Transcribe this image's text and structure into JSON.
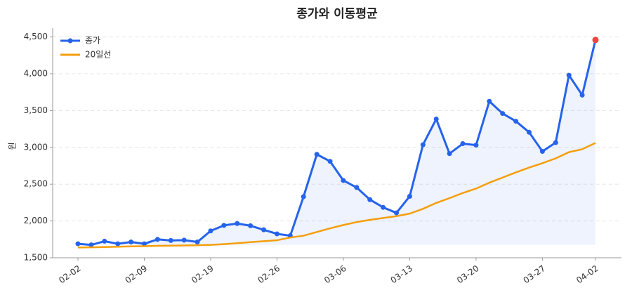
{
  "chart_data": {
    "type": "line",
    "title": "종가와 이동평균",
    "y_label": "원",
    "categories": [
      "02-02",
      null,
      null,
      null,
      null,
      "02-09",
      null,
      null,
      null,
      null,
      "02-19",
      null,
      null,
      null,
      null,
      "02-26",
      null,
      null,
      null,
      null,
      "03-06",
      null,
      null,
      null,
      null,
      "03-13",
      null,
      null,
      null,
      null,
      "03-20",
      null,
      null,
      null,
      null,
      "03-27",
      null,
      null,
      null,
      "04-02"
    ],
    "series": [
      {
        "name": "종가",
        "color": "#2563eb",
        "markers": true,
        "fill": true,
        "values": [
          1690,
          1675,
          1725,
          1690,
          1715,
          1690,
          1750,
          1735,
          1740,
          1715,
          1865,
          1940,
          1965,
          1935,
          1880,
          1825,
          1800,
          2330,
          2905,
          2810,
          2550,
          2455,
          2290,
          2185,
          2110,
          2335,
          3035,
          3385,
          2915,
          3050,
          3030,
          3625,
          3460,
          3355,
          3205,
          2945,
          3065,
          3980,
          3710,
          4460
        ]
      },
      {
        "name": "20일선",
        "color": "#f59e0b",
        "markers": false,
        "fill": false,
        "values": [
          1640,
          1642,
          1645,
          1650,
          1655,
          1658,
          1662,
          1665,
          1667,
          1670,
          1675,
          1685,
          1698,
          1712,
          1725,
          1738,
          1775,
          1800,
          1850,
          1900,
          1945,
          1985,
          2015,
          2040,
          2065,
          2100,
          2165,
          2245,
          2310,
          2380,
          2440,
          2520,
          2590,
          2660,
          2725,
          2785,
          2850,
          2935,
          2975,
          3060
        ]
      }
    ],
    "highlight_last": {
      "color": "#ef4444"
    },
    "ylim": [
      1500,
      4620
    ],
    "yticks": [
      {
        "value": 1500,
        "label": "1,500"
      },
      {
        "value": 2000,
        "label": "2,000"
      },
      {
        "value": 2500,
        "label": "2,500"
      },
      {
        "value": 3000,
        "label": "3,000"
      },
      {
        "value": 3500,
        "label": "3,500"
      },
      {
        "value": 4000,
        "label": "4,000"
      },
      {
        "value": 4500,
        "label": "4,500"
      }
    ],
    "grid": true,
    "legend": "upper left"
  }
}
